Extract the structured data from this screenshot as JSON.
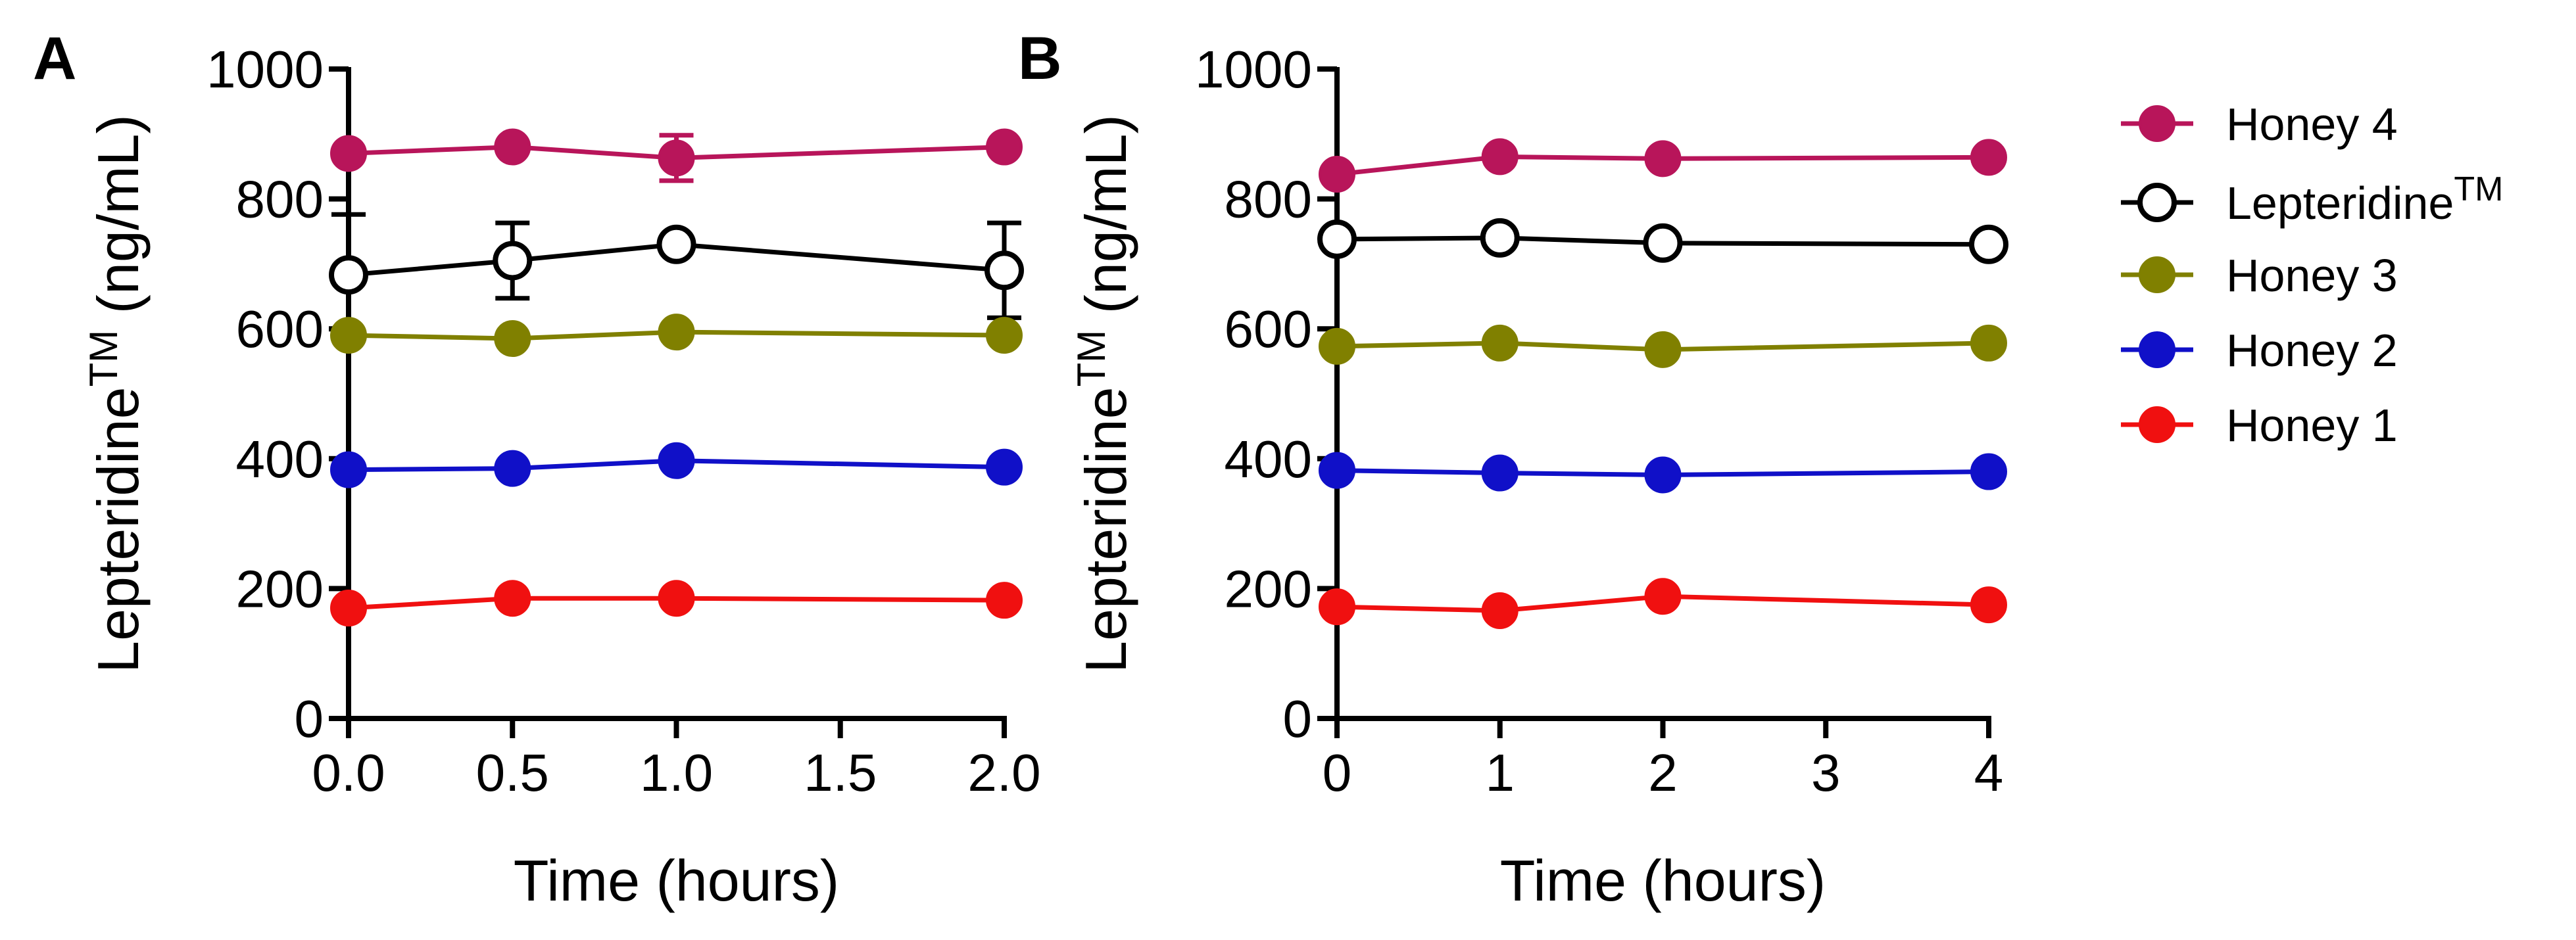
{
  "chart_data": [
    {
      "panel": "A",
      "type": "line",
      "ylabel": "Lepteridine",
      "ylabel_superscript": "TM",
      "ylabel_unit": " (ng/mL)",
      "xlabel": "Time (hours)",
      "xlim": [
        0,
        2
      ],
      "ylim": [
        0,
        1000
      ],
      "xticks": [
        0,
        0.5,
        1.0,
        1.5,
        2.0
      ],
      "xtick_labels": [
        "0.0",
        "0.5",
        "1.0",
        "1.5",
        "2.0"
      ],
      "yticks": [
        0,
        200,
        400,
        600,
        800,
        1000
      ],
      "ytick_labels": [
        "0",
        "200",
        "400",
        "600",
        "800",
        "1000"
      ],
      "x": [
        0,
        0.5,
        1.0,
        2.0
      ],
      "series": [
        {
          "name": "Honey 4",
          "values": [
            870,
            880,
            863,
            880
          ],
          "errors": [
            0,
            0,
            35,
            0
          ]
        },
        {
          "name": "Lepteridine",
          "values": [
            683,
            705,
            730,
            690
          ],
          "errors": [
            93,
            58,
            0,
            73
          ]
        },
        {
          "name": "Honey 3",
          "values": [
            590,
            585,
            595,
            590
          ],
          "errors": [
            0,
            0,
            0,
            0
          ]
        },
        {
          "name": "Honey 2",
          "values": [
            383,
            385,
            397,
            387
          ],
          "errors": [
            0,
            0,
            0,
            0
          ]
        },
        {
          "name": "Honey 1",
          "values": [
            170,
            185,
            185,
            182
          ],
          "errors": [
            0,
            0,
            0,
            0
          ]
        }
      ]
    },
    {
      "panel": "B",
      "type": "line",
      "ylabel": "Lepteridine",
      "ylabel_superscript": "TM",
      "ylabel_unit": " (ng/mL)",
      "xlabel": "Time (hours)",
      "xlim": [
        0,
        4
      ],
      "ylim": [
        0,
        1000
      ],
      "xticks": [
        0,
        1,
        2,
        3,
        4
      ],
      "xtick_labels": [
        "0",
        "1",
        "2",
        "3",
        "4"
      ],
      "yticks": [
        0,
        200,
        400,
        600,
        800,
        1000
      ],
      "ytick_labels": [
        "0",
        "200",
        "400",
        "600",
        "800",
        "1000"
      ],
      "x": [
        0,
        1,
        2,
        4
      ],
      "series": [
        {
          "name": "Honey 4",
          "values": [
            838,
            865,
            862,
            864
          ],
          "errors": [
            0,
            0,
            0,
            0
          ]
        },
        {
          "name": "Lepteridine",
          "values": [
            738,
            740,
            732,
            730
          ],
          "errors": [
            0,
            0,
            0,
            0
          ]
        },
        {
          "name": "Honey 3",
          "values": [
            573,
            578,
            568,
            578
          ],
          "errors": [
            0,
            0,
            0,
            0
          ]
        },
        {
          "name": "Honey 2",
          "values": [
            382,
            378,
            375,
            380
          ],
          "errors": [
            0,
            0,
            0,
            0
          ]
        },
        {
          "name": "Honey 1",
          "values": [
            172,
            166,
            188,
            175
          ],
          "errors": [
            0,
            0,
            0,
            0
          ]
        }
      ]
    }
  ],
  "legend": {
    "placement": "right",
    "items": [
      {
        "label": "Honey 4",
        "superscript": "",
        "color": "#b8155a",
        "filled": true
      },
      {
        "label": "Lepteridine",
        "superscript": "TM",
        "color": "#000000",
        "filled": false
      },
      {
        "label": "Honey 3",
        "superscript": "",
        "color": "#808000",
        "filled": true
      },
      {
        "label": "Honey 2",
        "superscript": "",
        "color": "#1010c8",
        "filled": true
      },
      {
        "label": "Honey 1",
        "superscript": "",
        "color": "#f01010",
        "filled": true
      }
    ]
  },
  "series_styles": {
    "Honey 4": {
      "color": "#b8155a",
      "filled": true
    },
    "Lepteridine": {
      "color": "#000000",
      "filled": false
    },
    "Honey 3": {
      "color": "#808000",
      "filled": true
    },
    "Honey 2": {
      "color": "#1010c8",
      "filled": true
    },
    "Honey 1": {
      "color": "#f01010",
      "filled": true
    }
  },
  "grid": false
}
